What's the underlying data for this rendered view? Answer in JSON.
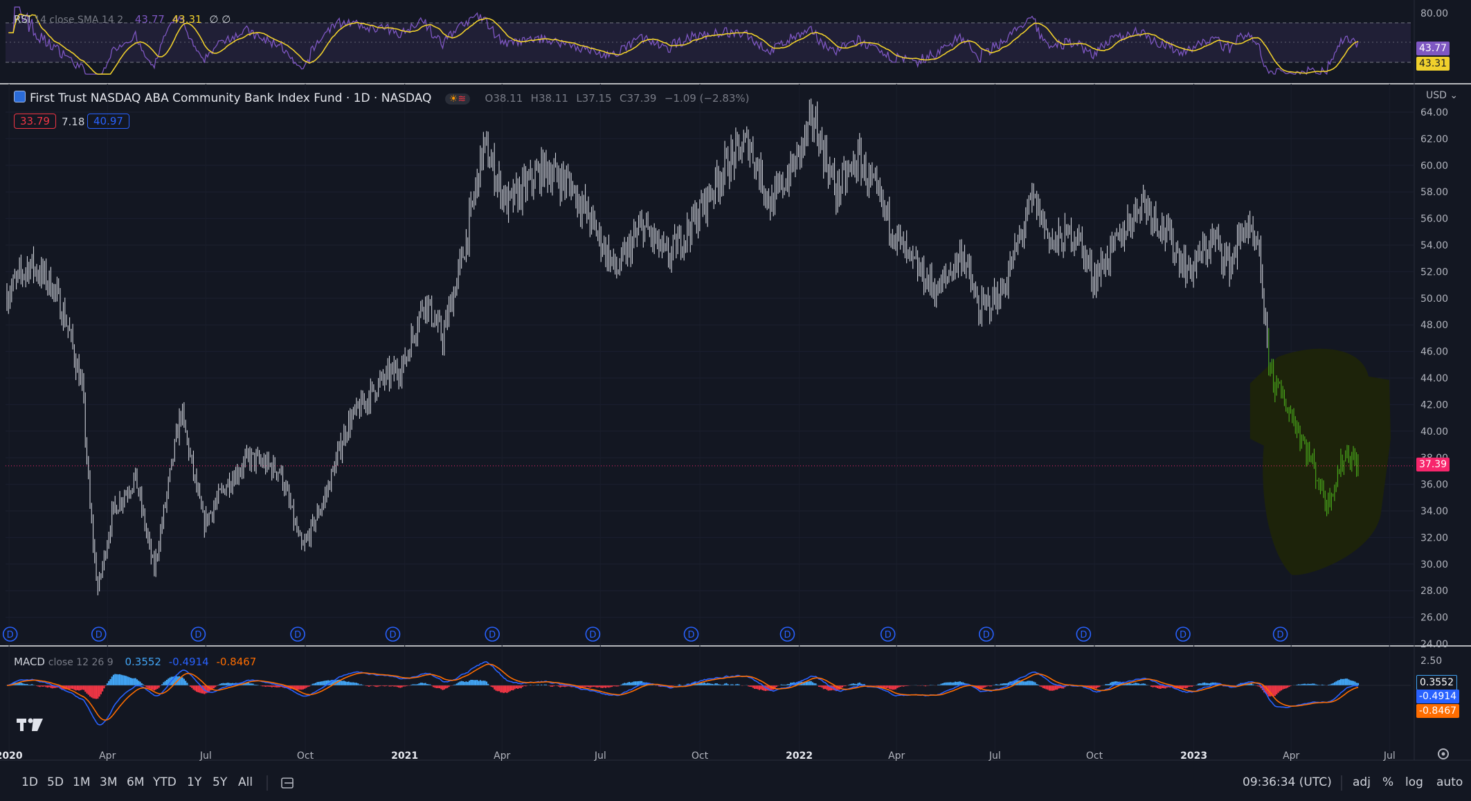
{
  "instrument": {
    "title": "First Trust NASDAQ ABA Community Bank Index Fund · 1D · NASDAQ",
    "open_label": "O",
    "open": "38.11",
    "high_label": "H",
    "high": "38.11",
    "low_label": "L",
    "low": "37.15",
    "close_label": "C",
    "close": "37.39",
    "change": "−1.09 (−2.83%)",
    "currency": "USD",
    "last_price": "37.39",
    "bid_box": "33.79",
    "spread": "7.18",
    "ask_box": "40.97"
  },
  "rsi": {
    "label": "RSI",
    "params": "14 close SMA 14 2",
    "value": "43.77",
    "sma": "43.31",
    "extra": "∅ ∅",
    "axis_top": "80.00",
    "tag_rsi": "43.77",
    "tag_sma": "43.31"
  },
  "macd": {
    "label": "MACD",
    "params": "close 12 26 9",
    "hist": "0.3552",
    "macd": "-0.4914",
    "signal": "-0.8467",
    "axis_top": "2.50",
    "tag_hist": "0.3552",
    "tag_macd": "-0.4914",
    "tag_signal": "-0.8467"
  },
  "colors": {
    "background": "#131722",
    "candle": "#d1d4dc",
    "candle_highlight": "#4caf1c",
    "highlight_blob": "#1e2409",
    "rsi": "#7e57c2",
    "rsi_sma": "#f0d02c",
    "macd": "#2962ff",
    "signal": "#ff6d00",
    "hist_up": "#42a5f5",
    "hist_down": "#f23645",
    "last_price": "#f7266c"
  },
  "chart_data": {
    "type": "candlestick",
    "price_axis": {
      "ticks": [
        "64.00",
        "62.00",
        "60.00",
        "58.00",
        "56.00",
        "54.00",
        "52.00",
        "50.00",
        "48.00",
        "46.00",
        "44.00",
        "42.00",
        "40.00",
        "38.00",
        "36.00",
        "34.00",
        "32.00",
        "30.00",
        "28.00",
        "26.00",
        "24.00"
      ],
      "range": [
        24,
        64.8
      ]
    },
    "time_axis": {
      "ticks": [
        {
          "label": "2020",
          "bold": true
        },
        {
          "label": "Apr",
          "bold": false
        },
        {
          "label": "Jul",
          "bold": false
        },
        {
          "label": "Oct",
          "bold": false
        },
        {
          "label": "2021",
          "bold": true
        },
        {
          "label": "Apr",
          "bold": false
        },
        {
          "label": "Jul",
          "bold": false
        },
        {
          "label": "Oct",
          "bold": false
        },
        {
          "label": "2022",
          "bold": true
        },
        {
          "label": "Apr",
          "bold": false
        },
        {
          "label": "Jul",
          "bold": false
        },
        {
          "label": "Oct",
          "bold": false
        },
        {
          "label": "2023",
          "bold": true
        },
        {
          "label": "Apr",
          "bold": false
        },
        {
          "label": "Jul",
          "bold": false
        }
      ]
    },
    "close_path": [
      [
        "2019-12-30",
        50.3
      ],
      [
        "2020-01-20",
        52.6
      ],
      [
        "2020-02-10",
        51.0
      ],
      [
        "2020-02-24",
        48.0
      ],
      [
        "2020-03-09",
        43.0
      ],
      [
        "2020-03-16",
        34.0
      ],
      [
        "2020-03-23",
        28.0
      ],
      [
        "2020-04-06",
        34.0
      ],
      [
        "2020-04-27",
        36.5
      ],
      [
        "2020-05-14",
        29.5
      ],
      [
        "2020-06-08",
        41.5
      ],
      [
        "2020-06-29",
        33.0
      ],
      [
        "2020-07-20",
        36.0
      ],
      [
        "2020-08-10",
        38.0
      ],
      [
        "2020-09-08",
        37.0
      ],
      [
        "2020-09-28",
        31.0
      ],
      [
        "2020-10-19",
        35.0
      ],
      [
        "2020-11-09",
        40.5
      ],
      [
        "2020-12-07",
        43.5
      ],
      [
        "2020-12-31",
        45.0
      ],
      [
        "2021-01-19",
        50.0
      ],
      [
        "2021-02-05",
        47.0
      ],
      [
        "2021-02-26",
        54.0
      ],
      [
        "2021-03-15",
        61.5
      ],
      [
        "2021-04-06",
        57.0
      ],
      [
        "2021-05-10",
        59.8
      ],
      [
        "2021-06-04",
        58.5
      ],
      [
        "2021-06-21",
        56.0
      ],
      [
        "2021-07-16",
        52.0
      ],
      [
        "2021-08-09",
        55.5
      ],
      [
        "2021-09-01",
        53.0
      ],
      [
        "2021-09-27",
        56.0
      ],
      [
        "2021-10-25",
        60.0
      ],
      [
        "2021-11-15",
        61.8
      ],
      [
        "2021-12-06",
        57.0
      ],
      [
        "2021-12-27",
        60.0
      ],
      [
        "2022-01-14",
        63.5
      ],
      [
        "2022-02-04",
        58.0
      ],
      [
        "2022-02-25",
        60.5
      ],
      [
        "2022-03-18",
        57.0
      ],
      [
        "2022-04-11",
        53.0
      ],
      [
        "2022-05-09",
        50.5
      ],
      [
        "2022-06-01",
        53.5
      ],
      [
        "2022-06-16",
        49.0
      ],
      [
        "2022-07-08",
        50.5
      ],
      [
        "2022-08-05",
        57.5
      ],
      [
        "2022-08-24",
        54.0
      ],
      [
        "2022-09-14",
        55.0
      ],
      [
        "2022-09-30",
        51.5
      ],
      [
        "2022-10-21",
        54.0
      ],
      [
        "2022-11-14",
        57.5
      ],
      [
        "2022-12-02",
        55.5
      ],
      [
        "2022-12-27",
        52.0
      ],
      [
        "2023-01-20",
        54.5
      ],
      [
        "2023-02-03",
        52.5
      ],
      [
        "2023-02-17",
        55.5
      ],
      [
        "2023-03-03",
        53.0
      ],
      [
        "2023-03-10",
        46.0
      ],
      [
        "2023-03-17",
        43.5
      ],
      [
        "2023-04-03",
        41.0
      ],
      [
        "2023-04-21",
        37.5
      ],
      [
        "2023-05-04",
        34.5
      ],
      [
        "2023-05-22",
        38.5
      ],
      [
        "2023-06-02",
        37.39
      ]
    ],
    "highlight": {
      "from": "2023-03-10",
      "to": "2023-06-02",
      "color": "green"
    },
    "dividend_markers": [
      "2020-01-02",
      "2020-03-24",
      "2020-06-24",
      "2020-09-24",
      "2020-12-21",
      "2021-03-23",
      "2021-06-24",
      "2021-09-23",
      "2021-12-21",
      "2022-03-24",
      "2022-06-23",
      "2022-09-21",
      "2022-12-22",
      "2023-03-22"
    ],
    "dividend_label": "D"
  },
  "timeframes": [
    "1D",
    "5D",
    "1M",
    "3M",
    "6M",
    "YTD",
    "1Y",
    "5Y",
    "All"
  ],
  "clock": "09:36:34 (UTC)",
  "bottom_right": [
    "adj",
    "%",
    "log",
    "auto"
  ],
  "logo_text": "17"
}
